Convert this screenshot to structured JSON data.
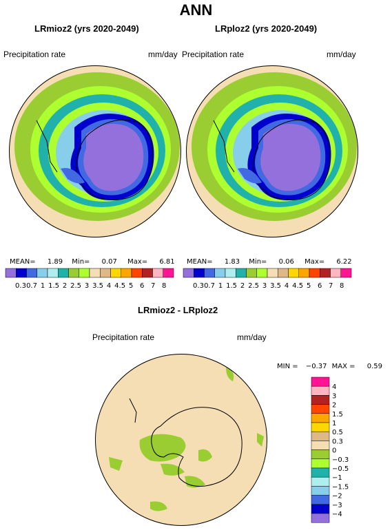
{
  "title": "ANN",
  "top_maps": [
    {
      "title": "LRmioz2 (yrs 2020-2049)",
      "variable": "Precipitation rate",
      "units": "mm/day",
      "stats": {
        "mean_label": "MEAN=",
        "mean": "1.89",
        "min_label": "Min=",
        "min": "0.07",
        "max_label": "Max=",
        "max": "6.81"
      }
    },
    {
      "title": "LRploz2 (yrs 2020-2049)",
      "variable": "Precipitation rate",
      "units": "mm/day",
      "stats": {
        "mean_label": "MEAN=",
        "mean": "1.83",
        "min_label": "Min=",
        "min": "0.06",
        "max_label": "Max=",
        "max": "6.22"
      }
    }
  ],
  "precip_colorbar": {
    "colors": [
      "#9370db",
      "#0000cd",
      "#4169e1",
      "#87ceeb",
      "#afeeee",
      "#20b2aa",
      "#9acd32",
      "#adff2f",
      "#f5deb3",
      "#deb887",
      "#ffd700",
      "#ffa500",
      "#ff4500",
      "#b22222",
      "#ffb6c1",
      "#ff1493"
    ],
    "labels": [
      "0.3",
      "0.7",
      "1",
      "1.5",
      "2",
      "2.5",
      "3",
      "3.5",
      "4",
      "4.5",
      "5",
      "6",
      "7",
      "8"
    ]
  },
  "diff_map": {
    "title": "LRmioz2 - LRploz2",
    "variable": "Precipitation rate",
    "units": "mm/day",
    "stats": {
      "min_label": "MIN =",
      "min": "−0.37",
      "max_label": "MAX =",
      "max": "0.59"
    }
  },
  "diff_colorbar": {
    "colors": [
      "#ff1493",
      "#ffb6c1",
      "#b22222",
      "#ff4500",
      "#ffa500",
      "#ffd700",
      "#deb887",
      "#f5deb3",
      "#9acd32",
      "#adff2f",
      "#20b2aa",
      "#afeeee",
      "#87ceeb",
      "#4169e1",
      "#0000cd",
      "#9370db"
    ],
    "labels": [
      "4",
      "3",
      "2",
      "1.5",
      "1",
      "0.5",
      "0.3",
      "0",
      "−0.3",
      "−0.5",
      "−1",
      "−1.5",
      "−2",
      "−3",
      "−4"
    ]
  }
}
